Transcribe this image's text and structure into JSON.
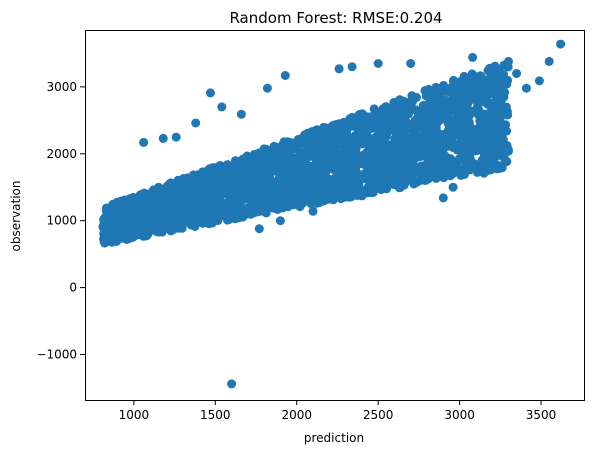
{
  "chart_data": {
    "type": "scatter",
    "title": "Random Forest: RMSE:0.204",
    "xlabel": "prediction",
    "ylabel": "observation",
    "xlim": [
      700,
      3770
    ],
    "ylim": [
      -1680,
      3850
    ],
    "xticks": [
      1000,
      1500,
      2000,
      2500,
      3000,
      3500
    ],
    "yticks": [
      -1000,
      0,
      1000,
      2000,
      3000
    ],
    "xtick_labels": [
      "1000",
      "1500",
      "2000",
      "2500",
      "3000",
      "3500"
    ],
    "ytick_labels": [
      "−1000",
      "0",
      "1000",
      "2000",
      "3000"
    ],
    "grid": false,
    "marker_color": "#1f77b4",
    "series": [
      {
        "density_band": {
          "x_range": [
            810,
            3300
          ],
          "lower_at_x_min": 650,
          "lower_at_x_max": 1800,
          "upper_at_x_min": 1200,
          "upper_at_x_max": 3400
        },
        "outliers": [
          [
            1600,
            -1440
          ],
          [
            3620,
            3640
          ],
          [
            3550,
            3380
          ],
          [
            3490,
            3090
          ],
          [
            3410,
            2980
          ],
          [
            3350,
            3200
          ],
          [
            3150,
            1710
          ],
          [
            3000,
            1930
          ],
          [
            2960,
            1500
          ],
          [
            2900,
            1340
          ],
          [
            3250,
            2460
          ],
          [
            3200,
            2260
          ],
          [
            3100,
            2360
          ],
          [
            3050,
            2090
          ],
          [
            2850,
            1800
          ],
          [
            1820,
            2980
          ],
          [
            1930,
            3170
          ],
          [
            1470,
            2910
          ],
          [
            1260,
            2250
          ],
          [
            1180,
            2230
          ],
          [
            1060,
            2170
          ],
          [
            1540,
            2700
          ],
          [
            1660,
            2590
          ],
          [
            1380,
            2460
          ],
          [
            2260,
            3270
          ],
          [
            2340,
            3300
          ],
          [
            1770,
            880
          ],
          [
            2100,
            1140
          ],
          [
            1900,
            1000
          ],
          [
            830,
            680
          ],
          [
            820,
            760
          ],
          [
            950,
            730
          ],
          [
            1100,
            850
          ],
          [
            1300,
            950
          ],
          [
            3080,
            3440
          ],
          [
            3300,
            3380
          ],
          [
            2700,
            3350
          ],
          [
            2500,
            3350
          ],
          [
            2400,
            1370
          ],
          [
            2650,
            1620
          ]
        ]
      }
    ]
  }
}
